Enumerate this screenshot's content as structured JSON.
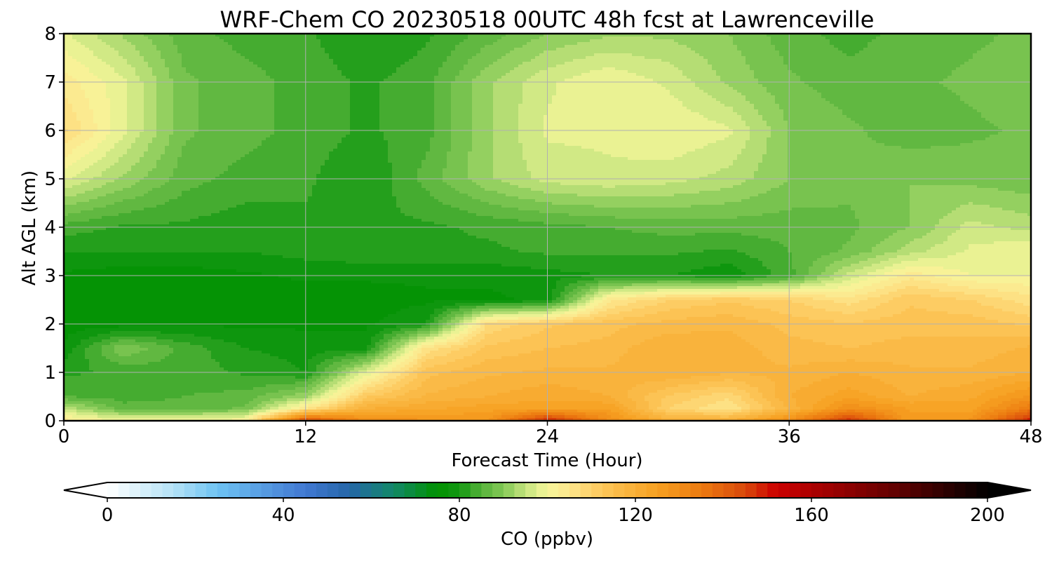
{
  "chart_data": {
    "type": "heatmap",
    "title": "WRF-Chem CO  20230518 00UTC 48h fcst at Lawrenceville",
    "xlabel": "Forecast Time (Hour)",
    "ylabel": "Alt AGL (km)",
    "xlim": [
      0,
      48
    ],
    "ylim": [
      0,
      8
    ],
    "x_ticks": [
      "0",
      "12",
      "24",
      "36",
      "48"
    ],
    "y_ticks": [
      "0",
      "1",
      "2",
      "3",
      "4",
      "5",
      "6",
      "7",
      "8"
    ],
    "grid": true,
    "x": [
      0,
      3,
      6,
      9,
      12,
      15,
      18,
      21,
      24,
      27,
      30,
      33,
      36,
      39,
      42,
      45,
      48
    ],
    "y": [
      0,
      0.25,
      0.5,
      1,
      1.5,
      2,
      2.5,
      3,
      3.5,
      4,
      5,
      6,
      7,
      8
    ],
    "z": [
      [
        104,
        100,
        100,
        102,
        145,
        130,
        128,
        127,
        150,
        130,
        120,
        120,
        130,
        148,
        125,
        128,
        150
      ],
      [
        95,
        86,
        86,
        88,
        105,
        120,
        122,
        124,
        124,
        125,
        110,
        105,
        118,
        130,
        125,
        124,
        135
      ],
      [
        85,
        84,
        85,
        86,
        92,
        112,
        118,
        120,
        122,
        120,
        112,
        108,
        120,
        124,
        120,
        122,
        128
      ],
      [
        82,
        83,
        84,
        82,
        80,
        98,
        114,
        117,
        118,
        118,
        120,
        118,
        118,
        120,
        118,
        118,
        120
      ],
      [
        78,
        90,
        84,
        80,
        79,
        79,
        106,
        113,
        115,
        116,
        120,
        119,
        116,
        115,
        116,
        116,
        118
      ],
      [
        76,
        76,
        77,
        77,
        77,
        77,
        80,
        108,
        112,
        114,
        116,
        117,
        114,
        113,
        114,
        114,
        112
      ],
      [
        75,
        75,
        75,
        76,
        76,
        76,
        77,
        77,
        78,
        104,
        110,
        112,
        110,
        106,
        112,
        110,
        106
      ],
      [
        77,
        76,
        76,
        77,
        78,
        78,
        78,
        78,
        79,
        80,
        80,
        78,
        84,
        96,
        104,
        100,
        100
      ],
      [
        80,
        80,
        80,
        80,
        81,
        82,
        82,
        82,
        83,
        83,
        83,
        82,
        85,
        88,
        94,
        98,
        100
      ],
      [
        84,
        82,
        82,
        81,
        82,
        82,
        82,
        83,
        84,
        85,
        86,
        86,
        86,
        87,
        90,
        96,
        94
      ],
      [
        98,
        92,
        86,
        84,
        83,
        80,
        86,
        92,
        96,
        97,
        96,
        94,
        90,
        88,
        90,
        89,
        88
      ],
      [
        108,
        98,
        88,
        86,
        84,
        82,
        84,
        92,
        98,
        98,
        100,
        98,
        90,
        88,
        86,
        87,
        88
      ],
      [
        104,
        98,
        88,
        86,
        84,
        82,
        84,
        92,
        97,
        100,
        97,
        92,
        88,
        86,
        87,
        88,
        89
      ],
      [
        98,
        92,
        86,
        84,
        83,
        80,
        82,
        86,
        90,
        92,
        92,
        90,
        86,
        84,
        86,
        87,
        88
      ]
    ],
    "colorbar": {
      "label": "CO  (ppbv)",
      "min": 0,
      "max": 200,
      "ticks": [
        "0",
        "40",
        "80",
        "120",
        "160",
        "200"
      ],
      "extend": "both",
      "stops": [
        [
          0,
          "#ffffff"
        ],
        [
          15,
          "#b4e2f6"
        ],
        [
          25,
          "#6ec3f3"
        ],
        [
          45,
          "#4178d2"
        ],
        [
          55,
          "#2466a8"
        ],
        [
          65,
          "#128868"
        ],
        [
          75,
          "#009100"
        ],
        [
          80,
          "#139812"
        ],
        [
          85,
          "#55b23a"
        ],
        [
          90,
          "#84c956"
        ],
        [
          95,
          "#c5e47e"
        ],
        [
          100,
          "#f6f69a"
        ],
        [
          105,
          "#fde68c"
        ],
        [
          110,
          "#fdd06a"
        ],
        [
          115,
          "#fbbe4c"
        ],
        [
          125,
          "#f6a021"
        ],
        [
          135,
          "#ec7a10"
        ],
        [
          145,
          "#d9480b"
        ],
        [
          152,
          "#cc0000"
        ],
        [
          165,
          "#9a0000"
        ],
        [
          180,
          "#5e0101"
        ],
        [
          200,
          "#000000"
        ]
      ],
      "under_color": "#ffffff",
      "over_color": "#000000"
    }
  }
}
